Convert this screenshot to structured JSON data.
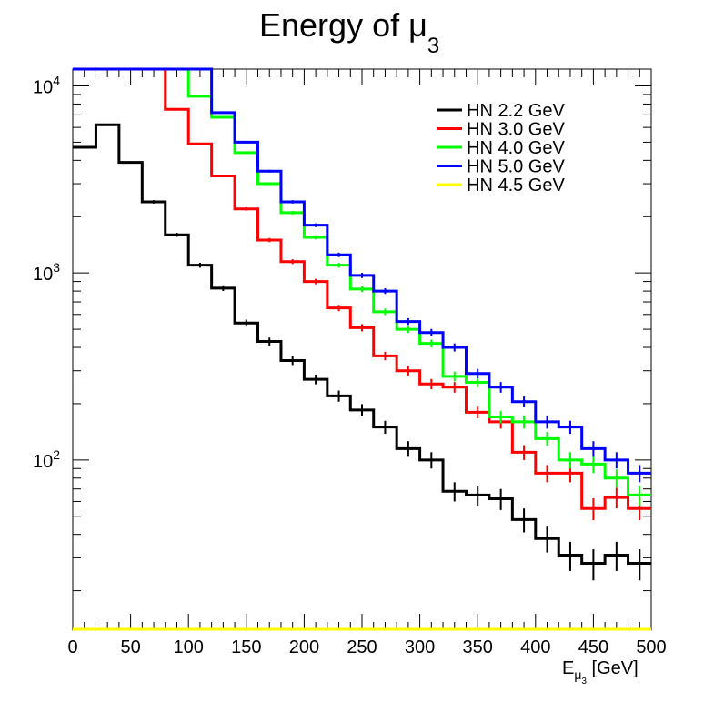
{
  "chart_data": {
    "type": "histogram",
    "title": {
      "text": "Energy of ",
      "symbol": "μ",
      "subscript": "3"
    },
    "xlabel": {
      "text": "E",
      "sub_symbol": "μ",
      "sub_index": "3",
      "unit": " [GeV]"
    },
    "ylabel": "",
    "xlim": [
      0,
      500
    ],
    "ylim_log10": [
      1.09,
      4.09
    ],
    "yscale": "log",
    "x_ticks": [
      0,
      50,
      100,
      150,
      200,
      250,
      300,
      350,
      400,
      450,
      500
    ],
    "x_tick_labels": [
      "0",
      "50",
      "100",
      "150",
      "200",
      "250",
      "300",
      "350",
      "400",
      "450",
      "500"
    ],
    "y_tick_labels": [
      {
        "base": "10",
        "exp": "2",
        "value": 100
      },
      {
        "base": "10",
        "exp": "3",
        "value": 1000
      },
      {
        "base": "10",
        "exp": "4",
        "value": 10000
      }
    ],
    "bin_edges": [
      0,
      20,
      40,
      60,
      80,
      100,
      120,
      140,
      160,
      180,
      200,
      220,
      240,
      260,
      280,
      300,
      320,
      340,
      360,
      380,
      400,
      420,
      440,
      460,
      480,
      500
    ],
    "legend_position": "top-right",
    "series": [
      {
        "name": "HN 2.2 GeV",
        "color": "#000000",
        "values": [
          4700,
          6200,
          3900,
          2400,
          1600,
          1100,
          830,
          540,
          430,
          340,
          270,
          220,
          185,
          150,
          115,
          100,
          68,
          65,
          62,
          48,
          38,
          31,
          28,
          31,
          28
        ],
        "errors": [
          70,
          80,
          60,
          50,
          40,
          33,
          29,
          23,
          21,
          18,
          16,
          15,
          14,
          12,
          11,
          10,
          8,
          8,
          8,
          7,
          6,
          5.5,
          5.3,
          5.5,
          5.3
        ]
      },
      {
        "name": "HN 3.0 GeV",
        "color": "#ff0000",
        "values": [
          12400,
          12400,
          12400,
          12400,
          7500,
          4900,
          3300,
          2200,
          1500,
          1150,
          900,
          650,
          510,
          360,
          300,
          255,
          245,
          180,
          160,
          110,
          85,
          85,
          55,
          63,
          55
        ],
        "errors": [
          110,
          110,
          110,
          110,
          87,
          70,
          57,
          47,
          39,
          34,
          30,
          25,
          23,
          19,
          17,
          16,
          16,
          13,
          13,
          10,
          9,
          9,
          7.4,
          7.9,
          7.4
        ]
      },
      {
        "name": "HN 4.0 GeV",
        "color": "#00ff00",
        "values": [
          12400,
          12400,
          12400,
          12400,
          12400,
          8800,
          6800,
          4400,
          3000,
          2100,
          1550,
          1100,
          820,
          620,
          500,
          420,
          280,
          260,
          170,
          160,
          130,
          100,
          95,
          80,
          65
        ],
        "errors": [
          110,
          110,
          110,
          110,
          110,
          94,
          82,
          66,
          55,
          46,
          39,
          33,
          29,
          25,
          22,
          20,
          17,
          16,
          13,
          13,
          11,
          10,
          10,
          9,
          8
        ]
      },
      {
        "name": "HN 5.0 GeV",
        "color": "#0000ff",
        "values": [
          12400,
          12400,
          12400,
          12400,
          12400,
          12400,
          7200,
          5000,
          3500,
          2400,
          1800,
          1250,
          970,
          800,
          550,
          480,
          400,
          290,
          245,
          205,
          160,
          150,
          115,
          100,
          85
        ],
        "errors": [
          110,
          110,
          110,
          110,
          110,
          110,
          85,
          71,
          59,
          49,
          42,
          35,
          31,
          28,
          23,
          22,
          20,
          17,
          16,
          14,
          13,
          12,
          11,
          10,
          9
        ]
      },
      {
        "name": "HN 4.5 GeV",
        "color": "#ffff00",
        "values": [
          0,
          0,
          0,
          0,
          0,
          0,
          0,
          0,
          0,
          0,
          0,
          0,
          0,
          0,
          0,
          0,
          0,
          0,
          0,
          0,
          0,
          0,
          0,
          0,
          0
        ],
        "errors": []
      }
    ]
  }
}
